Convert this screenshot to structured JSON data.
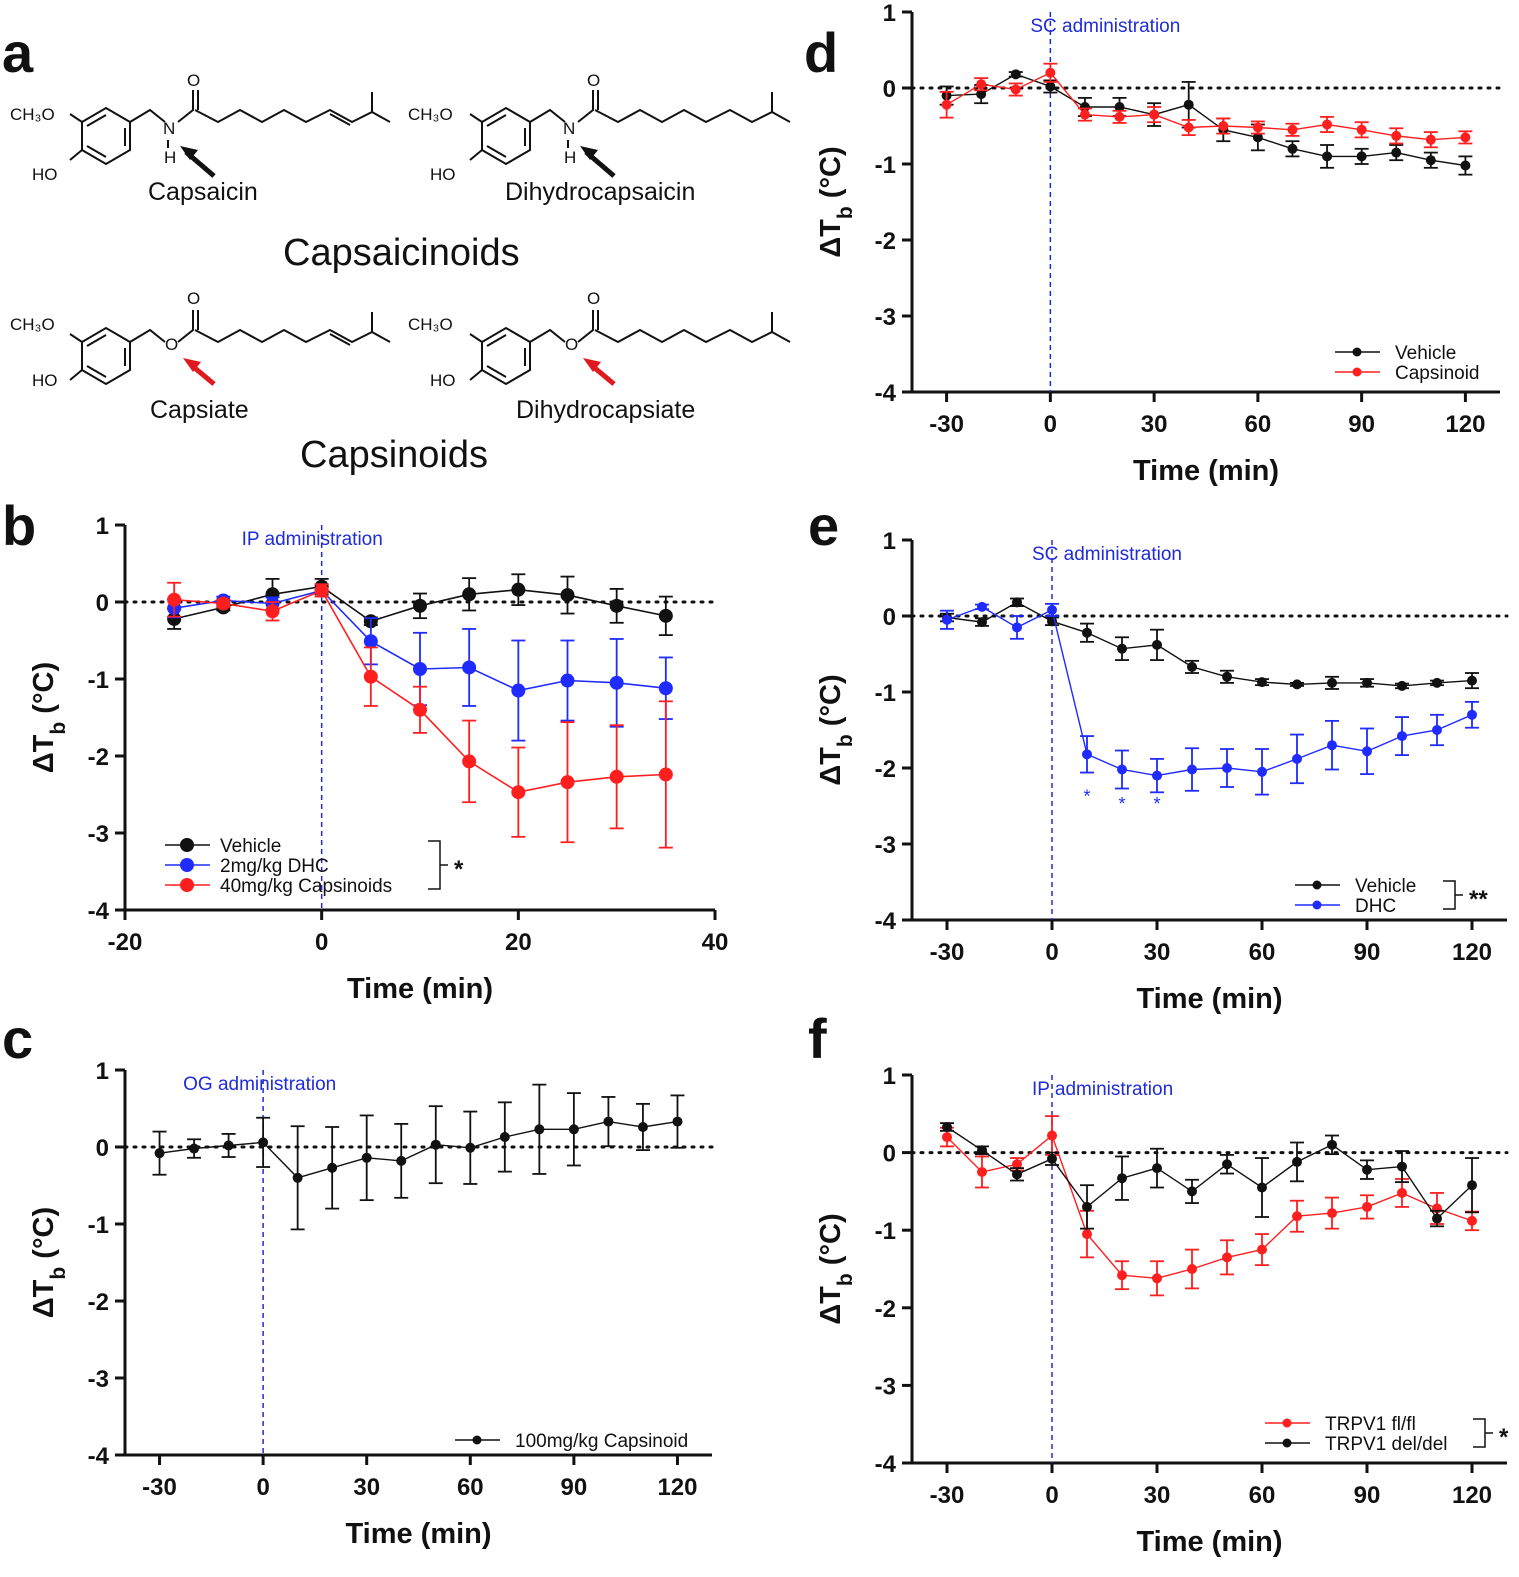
{
  "panel_a": {
    "label": "a",
    "atoms": {
      "methoxy": "CH₃O",
      "hydroxyl": "HO",
      "amide_n": "N",
      "amide_h": "H",
      "carbonyl_o": "O",
      "ester_o": "O"
    },
    "molecules": [
      "Capsaicin",
      "Dihydrocapsaicin",
      "Capsiate",
      "Dihydrocapsiate"
    ],
    "group_titles": [
      "Capsaicinoids",
      "Capsinoids"
    ],
    "arrow_colors": {
      "capsaicinoids": "#111111",
      "capsinoids": "#e0191e"
    }
  },
  "colors": {
    "black": "#111111",
    "red": "#ff1f1f",
    "blue": "#1f2bff",
    "admin": "#1f2bd9"
  },
  "chart_data": [
    {
      "id": "b",
      "label": "b",
      "type": "line",
      "title": "",
      "annotation": "IP administration",
      "xlabel": "Time (min)",
      "ylabel_prefix": "ΔT",
      "ylabel_sub": "b",
      "ylabel_suffix": " (°C)",
      "xlim": [
        -20,
        40
      ],
      "ylim": [
        -4,
        1
      ],
      "xticks": [
        -20,
        0,
        20,
        40
      ],
      "xtick_labels": [
        "-20",
        "0",
        "20",
        "40"
      ],
      "yticks": [
        1,
        0,
        -1,
        -2,
        -3,
        -4
      ],
      "ytick_labels": [
        "1",
        "0",
        "-1",
        "-2",
        "-3",
        "-4"
      ],
      "legend_position": "bottom-left",
      "significance": "*",
      "series": [
        {
          "name": "Vehicle",
          "color": "#111111",
          "x": [
            -15,
            -10,
            -5,
            0,
            5,
            10,
            15,
            20,
            25,
            30,
            35
          ],
          "y": [
            -0.22,
            -0.07,
            0.1,
            0.2,
            -0.25,
            -0.05,
            0.1,
            0.16,
            0.09,
            -0.05,
            -0.18
          ],
          "err": [
            0.13,
            0.04,
            0.2,
            0.1,
            0.05,
            0.16,
            0.21,
            0.2,
            0.24,
            0.22,
            0.25
          ]
        },
        {
          "name": "2mg/kg DHC",
          "color": "#1f2bff",
          "x": [
            -15,
            -10,
            -5,
            0,
            5,
            10,
            15,
            20,
            25,
            30,
            35
          ],
          "y": [
            -0.08,
            0.02,
            -0.02,
            0.15,
            -0.51,
            -0.87,
            -0.85,
            -1.15,
            -1.02,
            -1.05,
            -1.12
          ],
          "err": [
            0.12,
            0.05,
            0.08,
            0.08,
            0.3,
            0.47,
            0.5,
            0.65,
            0.52,
            0.57,
            0.4
          ]
        },
        {
          "name": "40mg/kg Capsinoids",
          "color": "#ff1f1f",
          "x": [
            -15,
            -10,
            -5,
            0,
            5,
            10,
            15,
            20,
            25,
            30,
            35
          ],
          "y": [
            0.03,
            -0.02,
            -0.12,
            0.15,
            -0.97,
            -1.4,
            -2.07,
            -2.47,
            -2.34,
            -2.27,
            -2.24
          ],
          "err": [
            0.22,
            0.05,
            0.12,
            0.08,
            0.38,
            0.3,
            0.53,
            0.58,
            0.78,
            0.67,
            0.95
          ]
        }
      ]
    },
    {
      "id": "c",
      "label": "c",
      "type": "line",
      "title": "",
      "annotation": "OG administration",
      "xlabel": "Time (min)",
      "ylabel_prefix": "ΔT",
      "ylabel_sub": "b",
      "ylabel_suffix": " (°C)",
      "xlim": [
        -40,
        130
      ],
      "ylim": [
        -4,
        1
      ],
      "xticks": [
        -30,
        0,
        30,
        60,
        90,
        120
      ],
      "xtick_labels": [
        "-30",
        "0",
        "30",
        "60",
        "90",
        "120"
      ],
      "yticks": [
        1,
        0,
        -1,
        -2,
        -3,
        -4
      ],
      "ytick_labels": [
        "1",
        "0",
        "-1",
        "-2",
        "-3",
        "-4"
      ],
      "legend_position": "bottom-right",
      "significance": "",
      "series": [
        {
          "name": "100mg/kg Capsinoid",
          "color": "#111111",
          "x": [
            -30,
            -20,
            -10,
            0,
            10,
            20,
            30,
            40,
            50,
            60,
            70,
            80,
            90,
            100,
            110,
            120
          ],
          "y": [
            -0.08,
            -0.02,
            0.02,
            0.06,
            -0.4,
            -0.27,
            -0.14,
            -0.18,
            0.03,
            -0.01,
            0.13,
            0.23,
            0.23,
            0.33,
            0.26,
            0.33
          ],
          "err": [
            0.28,
            0.12,
            0.15,
            0.32,
            0.67,
            0.53,
            0.55,
            0.48,
            0.5,
            0.47,
            0.45,
            0.58,
            0.47,
            0.32,
            0.3,
            0.34
          ]
        }
      ]
    },
    {
      "id": "d",
      "label": "d",
      "type": "line",
      "title": "",
      "annotation": "SC administration",
      "xlabel": "Time (min)",
      "ylabel_prefix": "ΔT",
      "ylabel_sub": "b",
      "ylabel_suffix": " (°C)",
      "xlim": [
        -40,
        130
      ],
      "ylim": [
        -4,
        1
      ],
      "xticks": [
        -30,
        0,
        30,
        60,
        90,
        120
      ],
      "xtick_labels": [
        "-30",
        "0",
        "30",
        "60",
        "90",
        "120"
      ],
      "yticks": [
        1,
        0,
        -1,
        -2,
        -3,
        -4
      ],
      "ytick_labels": [
        "1",
        "0",
        "-1",
        "-2",
        "-3",
        "-4"
      ],
      "legend_position": "bottom-right",
      "significance": "",
      "series": [
        {
          "name": "Vehicle",
          "color": "#111111",
          "x": [
            -30,
            -20,
            -10,
            0,
            10,
            20,
            30,
            40,
            50,
            60,
            70,
            80,
            90,
            100,
            110,
            120
          ],
          "y": [
            -0.1,
            -0.08,
            0.18,
            0.02,
            -0.25,
            -0.25,
            -0.35,
            -0.22,
            -0.55,
            -0.65,
            -0.8,
            -0.9,
            -0.9,
            -0.85,
            -0.95,
            -1.02
          ],
          "err": [
            0.12,
            0.12,
            0.03,
            0.08,
            0.12,
            0.12,
            0.15,
            0.3,
            0.15,
            0.17,
            0.1,
            0.15,
            0.1,
            0.1,
            0.1,
            0.12
          ]
        },
        {
          "name": "Capsinoid",
          "color": "#ff1f1f",
          "x": [
            -30,
            -20,
            -10,
            0,
            10,
            20,
            30,
            40,
            50,
            60,
            70,
            80,
            90,
            100,
            110,
            120
          ],
          "y": [
            -0.22,
            0.05,
            -0.02,
            0.2,
            -0.35,
            -0.38,
            -0.35,
            -0.52,
            -0.5,
            -0.52,
            -0.55,
            -0.48,
            -0.55,
            -0.63,
            -0.68,
            -0.65
          ],
          "err": [
            0.17,
            0.08,
            0.08,
            0.12,
            0.08,
            0.08,
            0.1,
            0.1,
            0.1,
            0.08,
            0.08,
            0.1,
            0.1,
            0.1,
            0.1,
            0.08
          ]
        }
      ]
    },
    {
      "id": "e",
      "label": "e",
      "type": "line",
      "title": "",
      "annotation": "SC administration",
      "xlabel": "Time (min)",
      "ylabel_prefix": "ΔT",
      "ylabel_sub": "b",
      "ylabel_suffix": " (°C)",
      "xlim": [
        -40,
        130
      ],
      "ylim": [
        -4,
        1
      ],
      "xticks": [
        -30,
        0,
        30,
        60,
        90,
        120
      ],
      "xtick_labels": [
        "-30",
        "0",
        "30",
        "60",
        "90",
        "120"
      ],
      "yticks": [
        1,
        0,
        -1,
        -2,
        -3,
        -4
      ],
      "ytick_labels": [
        "1",
        "0",
        "-1",
        "-2",
        "-3",
        "-4"
      ],
      "legend_position": "bottom-right",
      "significance": "**",
      "point_markers": [
        {
          "x": 10,
          "y": -2.35,
          "text": "*"
        },
        {
          "x": 20,
          "y": -2.45,
          "text": "*"
        },
        {
          "x": 30,
          "y": -2.45,
          "text": "*"
        }
      ],
      "series": [
        {
          "name": "Vehicle",
          "color": "#111111",
          "x": [
            -30,
            -20,
            -10,
            0,
            10,
            20,
            30,
            40,
            50,
            60,
            70,
            80,
            90,
            100,
            110,
            120
          ],
          "y": [
            -0.02,
            -0.08,
            0.18,
            -0.07,
            -0.22,
            -0.43,
            -0.38,
            -0.67,
            -0.8,
            -0.87,
            -0.9,
            -0.88,
            -0.88,
            -0.92,
            -0.88,
            -0.85
          ],
          "err": [
            0.05,
            0.05,
            0.05,
            0.05,
            0.12,
            0.15,
            0.2,
            0.08,
            0.08,
            0.04,
            0.02,
            0.08,
            0.05,
            0.03,
            0.03,
            0.1
          ]
        },
        {
          "name": "DHC",
          "color": "#1f2bff",
          "x": [
            -30,
            -20,
            -10,
            0,
            10,
            20,
            30,
            40,
            50,
            60,
            70,
            80,
            90,
            100,
            110,
            120
          ],
          "y": [
            -0.05,
            0.12,
            -0.15,
            0.08,
            -1.82,
            -2.02,
            -2.1,
            -2.02,
            -2.0,
            -2.05,
            -1.88,
            -1.7,
            -1.78,
            -1.58,
            -1.5,
            -1.3
          ],
          "err": [
            0.12,
            0.03,
            0.15,
            0.08,
            0.24,
            0.25,
            0.22,
            0.28,
            0.25,
            0.3,
            0.32,
            0.32,
            0.3,
            0.25,
            0.2,
            0.17
          ]
        }
      ]
    },
    {
      "id": "f",
      "label": "f",
      "type": "line",
      "title": "",
      "annotation": "IP administration",
      "xlabel": "Time (min)",
      "ylabel_prefix": "ΔT",
      "ylabel_sub": "b",
      "ylabel_suffix": " (°C)",
      "xlim": [
        -40,
        130
      ],
      "ylim": [
        -4,
        1
      ],
      "xticks": [
        -30,
        0,
        30,
        60,
        90,
        120
      ],
      "xtick_labels": [
        "-30",
        "0",
        "30",
        "60",
        "90",
        "120"
      ],
      "yticks": [
        1,
        0,
        -1,
        -2,
        -3,
        -4
      ],
      "ytick_labels": [
        "1",
        "0",
        "-1",
        "-2",
        "-3",
        "-4"
      ],
      "legend_position": "bottom-right",
      "significance": "*",
      "series": [
        {
          "name": "TRPV1 fl/fl",
          "color": "#ff1f1f",
          "x": [
            -30,
            -20,
            -10,
            0,
            10,
            20,
            30,
            40,
            50,
            60,
            70,
            80,
            90,
            100,
            110,
            120
          ],
          "y": [
            0.2,
            -0.25,
            -0.15,
            0.22,
            -1.05,
            -1.58,
            -1.62,
            -1.5,
            -1.35,
            -1.25,
            -0.82,
            -0.78,
            -0.7,
            -0.52,
            -0.72,
            -0.88
          ],
          "err": [
            0.12,
            0.2,
            0.08,
            0.25,
            0.3,
            0.18,
            0.22,
            0.25,
            0.22,
            0.2,
            0.2,
            0.2,
            0.15,
            0.18,
            0.2,
            0.12
          ]
        },
        {
          "name": "TRPV1 del/del",
          "color": "#111111",
          "x": [
            -30,
            -20,
            -10,
            0,
            10,
            20,
            30,
            40,
            50,
            60,
            70,
            80,
            90,
            100,
            110,
            120
          ],
          "y": [
            0.33,
            0.03,
            -0.28,
            -0.08,
            -0.7,
            -0.33,
            -0.2,
            -0.5,
            -0.15,
            -0.45,
            -0.12,
            0.1,
            -0.22,
            -0.18,
            -0.85,
            -0.42
          ],
          "err": [
            0.05,
            0.05,
            0.08,
            0.08,
            0.28,
            0.28,
            0.25,
            0.15,
            0.12,
            0.38,
            0.25,
            0.12,
            0.12,
            0.2,
            0.1,
            0.35
          ]
        }
      ]
    }
  ]
}
